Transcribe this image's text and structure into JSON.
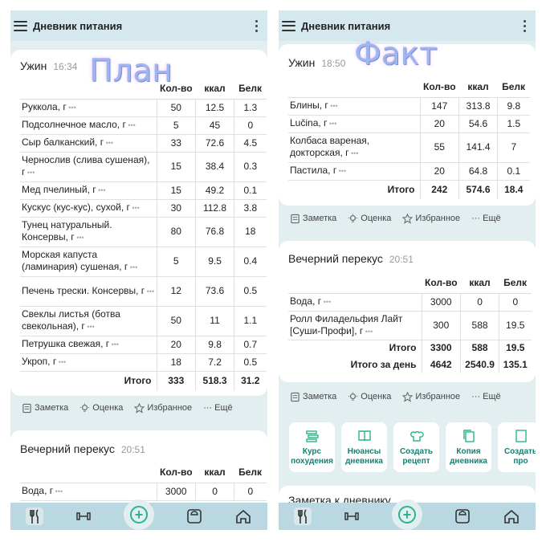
{
  "app_title": "Дневник питания",
  "left": {
    "overlay": "План",
    "dinner": {
      "title": "Ужин",
      "time": "16:34",
      "headers": [
        "Кол-во",
        "ккал",
        "Белк"
      ],
      "rows": [
        {
          "name": "Руккола, г",
          "qty": "50",
          "kcal": "12.5",
          "prot": "1.3"
        },
        {
          "name": "Подсолнечное масло, г",
          "qty": "5",
          "kcal": "45",
          "prot": "0"
        },
        {
          "name": "Сыр балканский, г",
          "qty": "33",
          "kcal": "72.6",
          "prot": "4.5"
        },
        {
          "name": "Чернослив (слива сушеная), г",
          "qty": "15",
          "kcal": "38.4",
          "prot": "0.3"
        },
        {
          "name": "Мед пчелиный, г",
          "qty": "15",
          "kcal": "49.2",
          "prot": "0.1"
        },
        {
          "name": "Кускус (кус-кус), сухой, г",
          "qty": "30",
          "kcal": "112.8",
          "prot": "3.8"
        },
        {
          "name": "Тунец натуральный. Консервы, г",
          "qty": "80",
          "kcal": "76.8",
          "prot": "18"
        },
        {
          "name": "Морская капуста (ламинария) сушеная, г",
          "qty": "5",
          "kcal": "9.5",
          "prot": "0.4"
        },
        {
          "name": "Печень трески. Консервы, г",
          "qty": "12",
          "kcal": "73.6",
          "prot": "0.5"
        },
        {
          "name": "Свеклы листья (ботва свекольная), г",
          "qty": "50",
          "kcal": "11",
          "prot": "1.1"
        },
        {
          "name": "Петрушка свежая, г",
          "qty": "20",
          "kcal": "9.8",
          "prot": "0.7"
        },
        {
          "name": "Укроп, г",
          "qty": "18",
          "kcal": "7.2",
          "prot": "0.5"
        }
      ],
      "total": {
        "label": "Итого",
        "qty": "333",
        "kcal": "518.3",
        "prot": "31.2"
      }
    },
    "actions": [
      "Заметка",
      "Оценка",
      "Избранное",
      "Ещё"
    ],
    "snack": {
      "title": "Вечерний перекус",
      "time": "20:51",
      "headers": [
        "Кол-во",
        "ккал",
        "Белк"
      ],
      "rows": [
        {
          "name": "Вода, г",
          "qty": "3000",
          "kcal": "0",
          "prot": "0"
        }
      ]
    }
  },
  "right": {
    "overlay": "Факт",
    "dinner": {
      "title": "Ужин",
      "time": "18:50",
      "headers": [
        "Кол-во",
        "ккал",
        "Белк"
      ],
      "rows": [
        {
          "name": "Блины, г",
          "qty": "147",
          "kcal": "313.8",
          "prot": "9.8"
        },
        {
          "name": "Lučina, г",
          "qty": "20",
          "kcal": "54.6",
          "prot": "1.5"
        },
        {
          "name": "Колбаса вареная, докторская, г",
          "qty": "55",
          "kcal": "141.4",
          "prot": "7"
        },
        {
          "name": "Пастила, г",
          "qty": "20",
          "kcal": "64.8",
          "prot": "0.1"
        }
      ],
      "total": {
        "label": "Итого",
        "qty": "242",
        "kcal": "574.6",
        "prot": "18.4"
      }
    },
    "actions": [
      "Заметка",
      "Оценка",
      "Избранное",
      "Ещё"
    ],
    "snack": {
      "title": "Вечерний перекус",
      "time": "20:51",
      "headers": [
        "Кол-во",
        "ккал",
        "Белк"
      ],
      "rows": [
        {
          "name": "Вода, г",
          "qty": "3000",
          "kcal": "0",
          "prot": "0"
        },
        {
          "name": "Ролл Филадельфия Лайт [Суши-Профи], г",
          "qty": "300",
          "kcal": "588",
          "prot": "19.5"
        }
      ],
      "total": {
        "label": "Итого",
        "qty": "3300",
        "kcal": "588",
        "prot": "19.5"
      },
      "day_total": {
        "label": "Итого за день",
        "qty": "4642",
        "kcal": "2540.9",
        "prot": "135.1"
      }
    },
    "actions2": [
      "Заметка",
      "Оценка",
      "Избранное",
      "Ещё"
    ],
    "tiles": [
      "Курс похудения",
      "Нюансы дневника",
      "Создать рецепт",
      "Копия дневника",
      "Создать про"
    ],
    "note_title": "Заметка к дневнику"
  },
  "icons": {
    "menu": "hamburger-icon",
    "more": "kebab-icon",
    "note": "note-icon",
    "rating": "bulb-icon",
    "fav": "star-icon",
    "more_h": "ellipsis-icon",
    "nav": [
      "fork-knife-icon",
      "dumbbell-icon",
      "plus-icon",
      "scale-icon",
      "home-icon"
    ]
  },
  "colors": {
    "accent": "#2ab38c",
    "appbar": "#d4e8ee",
    "navbar": "#b9d8e1",
    "background": "#e3eef1"
  }
}
